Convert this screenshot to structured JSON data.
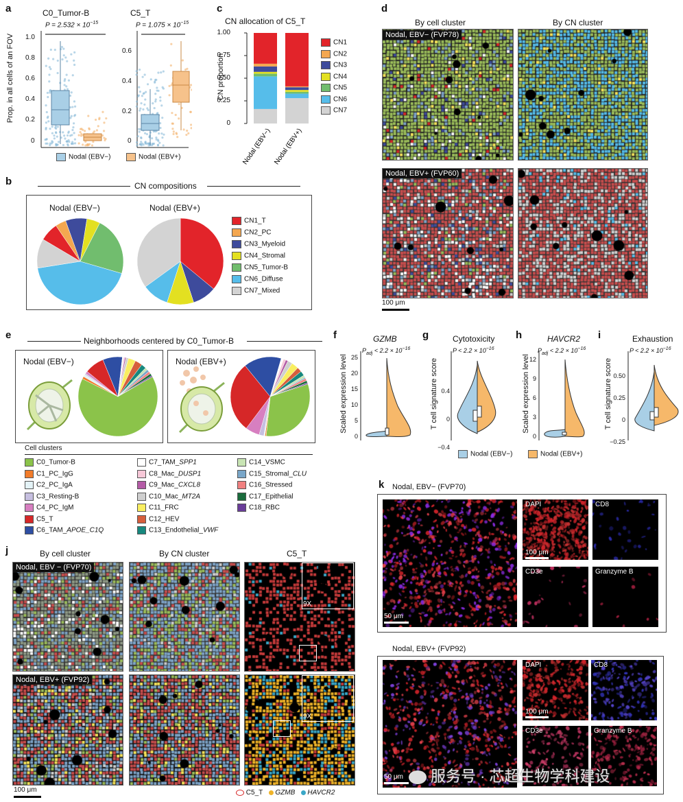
{
  "panel_labels": {
    "a": "a",
    "b": "b",
    "c": "c",
    "d": "d",
    "e": "e",
    "f": "f",
    "g": "g",
    "h": "h",
    "i": "i",
    "j": "j",
    "k": "k"
  },
  "panel_a": {
    "left_title": "C0_Tumor-B",
    "right_title": "C5_T",
    "left_p": "P = 2.532 × 10",
    "left_p_exp": "−15",
    "right_p": "P = 1.075 × 10",
    "right_p_exp": "−15",
    "ylabel": "Prop. in all cells of an FOV",
    "left_ticks": [
      "1.0",
      "0.8",
      "0.6",
      "0.4",
      "0.2",
      "0"
    ],
    "right_ticks": [
      "0.6",
      "0.4",
      "0.2",
      "0"
    ],
    "legend": [
      {
        "label": "Nodal (EBV−)",
        "color": "#a9cfe6"
      },
      {
        "label": "Nodal (EBV+)",
        "color": "#f6c28b"
      }
    ]
  },
  "chart_data": [
    {
      "type": "bar",
      "title": "CN allocation of C5_T",
      "ylabel": "CN proportion",
      "categories": [
        "Nodal (EBV−)",
        "Nodal (EBV+)"
      ],
      "ylim": [
        0,
        1
      ],
      "yticks": [
        "1.00",
        "0.75",
        "0.50",
        "0.25",
        "0"
      ],
      "series": [
        {
          "name": "CN7",
          "color": "#d3d3d3",
          "values": [
            0.16,
            0.28
          ]
        },
        {
          "name": "CN6",
          "color": "#56bdea",
          "values": [
            0.36,
            0.05
          ]
        },
        {
          "name": "CN5",
          "color": "#71bd6e",
          "values": [
            0.03,
            0.02
          ]
        },
        {
          "name": "CN4",
          "color": "#e3e021",
          "values": [
            0.02,
            0.02
          ]
        },
        {
          "name": "CN3",
          "color": "#3e4b9c",
          "values": [
            0.06,
            0.03
          ]
        },
        {
          "name": "CN2",
          "color": "#f4a750",
          "values": [
            0.03,
            0.01
          ]
        },
        {
          "name": "CN1",
          "color": "#e2242a",
          "values": [
            0.34,
            0.59
          ]
        }
      ]
    },
    {
      "type": "pie",
      "title": "Nodal (EBV−)",
      "labels": [
        "CN1_T",
        "CN2_PC",
        "CN3_Myeloid",
        "CN4_Stromal",
        "CN5_Tumor-B",
        "CN6_Diffuse",
        "CN7_Mixed"
      ],
      "values": [
        0.07,
        0.04,
        0.08,
        0.05,
        0.22,
        0.43,
        0.11
      ]
    },
    {
      "type": "pie",
      "title": "Nodal (EBV+)",
      "labels": [
        "CN1_T",
        "CN2_PC",
        "CN3_Myeloid",
        "CN4_Stromal",
        "CN5_Tumor-B",
        "CN6_Diffuse",
        "CN7_Mixed"
      ],
      "values": [
        0.36,
        0.0,
        0.09,
        0.1,
        0.0,
        0.1,
        0.35
      ]
    }
  ],
  "panel_b": {
    "title": "CN compositions",
    "pie_left": "Nodal (EBV−)",
    "pie_right": "Nodal (EBV+)",
    "legend": [
      {
        "label": "CN1_T",
        "color": "#e2242a"
      },
      {
        "label": "CN2_PC",
        "color": "#f4a750"
      },
      {
        "label": "CN3_Myeloid",
        "color": "#3e4b9c"
      },
      {
        "label": "CN4_Stromal",
        "color": "#e3e021"
      },
      {
        "label": "CN5_Tumor-B",
        "color": "#71bd6e"
      },
      {
        "label": "CN6_Diffuse",
        "color": "#56bdea"
      },
      {
        "label": "CN7_Mixed",
        "color": "#d3d3d3"
      }
    ]
  },
  "panel_c": {
    "legend": [
      {
        "label": "CN1",
        "color": "#e2242a"
      },
      {
        "label": "CN2",
        "color": "#f4a750"
      },
      {
        "label": "CN3",
        "color": "#3e4b9c"
      },
      {
        "label": "CN4",
        "color": "#e3e021"
      },
      {
        "label": "CN5",
        "color": "#71bd6e"
      },
      {
        "label": "CN6",
        "color": "#56bdea"
      },
      {
        "label": "CN7",
        "color": "#d3d3d3"
      }
    ]
  },
  "panel_d": {
    "col1": "By cell cluster",
    "col2": "By CN cluster",
    "row1": "Nodal, EBV− (FVP78)",
    "row2": "Nodal, EBV+ (FVP60)",
    "scale": "100 μm"
  },
  "panel_e": {
    "title": "Neighborhoods centered by C0_Tumor-B",
    "left": "Nodal (EBV−)",
    "right": "Nodal (EBV+)",
    "cell_clusters_title": "Cell clusters",
    "clusters": [
      {
        "label": "C0_Tumor-B",
        "color": "#8bc34a"
      },
      {
        "label": "C1_PC_IgG",
        "color": "#f27c2a"
      },
      {
        "label": "C2_PC_IgA",
        "color": "#e4f3f7"
      },
      {
        "label": "C3_Resting-B",
        "color": "#c6bfe0"
      },
      {
        "label": "C4_PC_IgM",
        "color": "#d77fc0"
      },
      {
        "label": "C5_T",
        "color": "#d62728"
      },
      {
        "label": "C6_TAM_",
        "italic": "APOE_C1Q",
        "color": "#2e4ea3"
      },
      {
        "label": "C7_TAM_",
        "italic": "SPP1",
        "color": "#ffffff"
      },
      {
        "label": "C8_Mac_",
        "italic": "DUSP1",
        "color": "#f7c8d8"
      },
      {
        "label": "C9_Mac_",
        "italic": "CXCL8",
        "color": "#b45ba6"
      },
      {
        "label": "C10_Mac_",
        "italic": "MT2A",
        "color": "#cfcfcf"
      },
      {
        "label": "C11_FRC",
        "color": "#f9ee60"
      },
      {
        "label": "C12_HEV",
        "color": "#d65e3c"
      },
      {
        "label": "C13_Endothelial_",
        "italic": "VWF",
        "color": "#17887e"
      },
      {
        "label": "C14_VSMC",
        "color": "#c8e4b4"
      },
      {
        "label": "C15_Stromal_",
        "italic": "CLU",
        "color": "#7aa7c9"
      },
      {
        "label": "C16_Stressed",
        "color": "#f08080"
      },
      {
        "label": "C17_Epithelial",
        "color": "#1a6b3c"
      },
      {
        "label": "C18_RBC",
        "color": "#6a3d9a"
      }
    ]
  },
  "panel_fghi": {
    "f_title": "GZMB",
    "g_title": "Cytotoxicity",
    "h_title": "HAVCR2",
    "i_title": "Exhaustion",
    "padj": "P",
    "padj_sub": "adj",
    "p_value": " < 2.2 × 10",
    "p_exp": "−16",
    "p_plain": "P < 2.2 × 10",
    "f_ylabel": "Scaled expression level",
    "g_ylabel": "T cell signature score",
    "h_ylabel": "Scaled expression level",
    "i_ylabel": "T cell signature score",
    "f_ticks": [
      "25",
      "20",
      "15",
      "10",
      "5",
      "0"
    ],
    "g_ticks": [
      "0.4",
      "0",
      "−0.4"
    ],
    "h_ticks": [
      "12",
      "9",
      "6",
      "3",
      "0"
    ],
    "i_ticks": [
      "0.50",
      "0.25",
      "0",
      "−0.25"
    ],
    "legend": [
      {
        "label": "Nodal (EBV−)",
        "color": "#a9cfe6"
      },
      {
        "label": "Nodal (EBV+)",
        "color": "#f6b86a"
      }
    ]
  },
  "panel_j": {
    "col1": "By cell cluster",
    "col2": "By CN cluster",
    "col3": "C5_T",
    "row1": "Nodal, EBV − (FVP70)",
    "row2": "Nodal, EBV+ (FVP92)",
    "zoom": "9X",
    "scale": "100 μm",
    "legend": [
      {
        "label": "C5_T"
      },
      {
        "label": "GZMB",
        "italic": true
      },
      {
        "label": "HAVCR2",
        "italic": true
      }
    ]
  },
  "panel_k": {
    "top_title": "Nodal, EBV− (FVP70)",
    "bottom_title": "Nodal, EBV+ (FVP92)",
    "channels": [
      "DAPI",
      "CD8",
      "CD3e",
      "Granzyme B"
    ],
    "scale_small": "100 μm",
    "scale_large": "50 μm"
  },
  "watermark": "服务号 · 芯超生物学科建设"
}
